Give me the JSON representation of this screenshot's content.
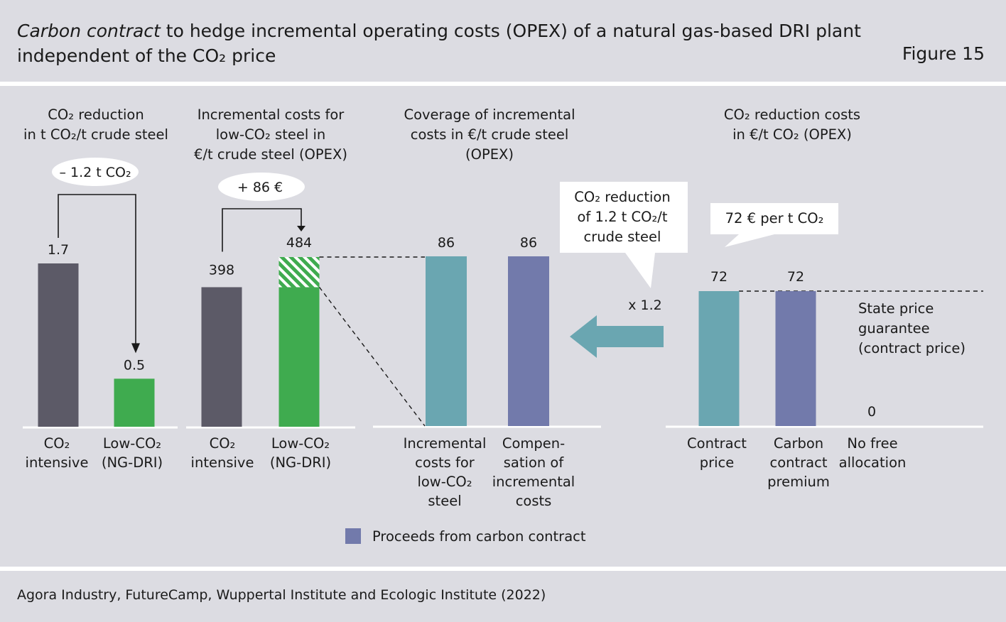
{
  "title": {
    "line1_italic": "Carbon contract",
    "line1_rest": " to hedge incremental operating costs (OPEX) of a natural gas-based DRI plant",
    "line2": "independent of the CO₂ price"
  },
  "figure_label": "Figure 15",
  "source": "Agora Industry, FutureCamp, Wuppertal Institute and Ecologic Institute (2022)",
  "colors": {
    "background": "#dcdce2",
    "co2_intensive": "#5c5a67",
    "low_co2": "#3fab4f",
    "teal": "#6aa6b1",
    "purple": "#727aab",
    "arrow": "#6aa6b1"
  },
  "chart_data": [
    {
      "type": "bar",
      "title": [
        "CO₂ reduction",
        "in t CO₂/t crude steel"
      ],
      "categories": [
        [
          "CO₂",
          "intensive"
        ],
        [
          "Low-CO₂",
          "(NG-DRI)"
        ]
      ],
      "values": [
        1.7,
        0.5
      ],
      "value_labels": [
        "1.7",
        "0.5"
      ],
      "annotation": "– 1.2 t CO₂",
      "ylim": [
        0,
        1.7
      ]
    },
    {
      "type": "bar",
      "title": [
        "Incremental costs for",
        "low-CO₂ steel in",
        "€/t crude steel (OPEX)"
      ],
      "categories": [
        [
          "CO₂",
          "intensive"
        ],
        [
          "Low-CO₂",
          "(NG-DRI)"
        ]
      ],
      "values": [
        398,
        484
      ],
      "value_labels": [
        "398",
        "484"
      ],
      "incremental_hatched": 86,
      "annotation": "+ 86 €",
      "ylim": [
        0,
        484
      ]
    },
    {
      "type": "bar",
      "title": [
        "Coverage of incremental",
        "costs in €/t crude steel",
        "(OPEX)"
      ],
      "categories": [
        [
          "Incremental",
          "costs for",
          "low-CO₂",
          "steel"
        ],
        [
          "Compen-",
          "sation of",
          "incremental",
          "costs"
        ]
      ],
      "values": [
        86,
        86
      ],
      "value_labels": [
        "86",
        "86"
      ],
      "ylim": [
        0,
        86
      ]
    },
    {
      "type": "bar",
      "title": [
        "CO₂ reduction costs",
        "in €/t CO₂ (OPEX)"
      ],
      "categories": [
        [
          "Contract",
          "price"
        ],
        [
          "Carbon",
          "contract",
          "premium"
        ],
        [
          "No free",
          "allocation"
        ]
      ],
      "values": [
        72,
        72,
        0
      ],
      "value_labels": [
        "72",
        "72",
        "0"
      ],
      "reference_line_label": [
        "State price",
        "guarantee",
        "(contract price)"
      ],
      "callout": "72 € per t CO₂",
      "ylim": [
        0,
        72
      ]
    }
  ],
  "middle_callout": [
    "CO₂ reduction",
    "of 1.2 t CO₂/t",
    "crude steel"
  ],
  "multiplier": "x 1.2",
  "legend": {
    "label": "Proceeds from carbon contract"
  }
}
